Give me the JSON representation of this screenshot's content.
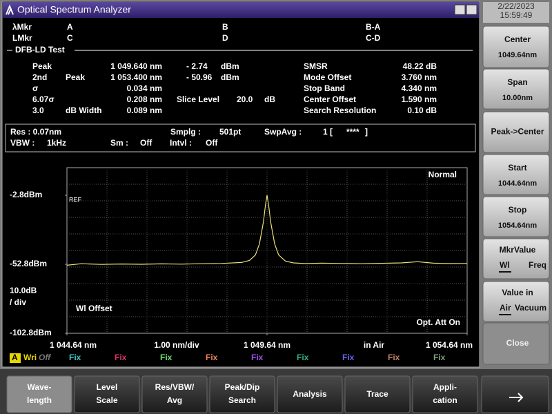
{
  "title_bar": {
    "title": "Optical Spectrum Analyzer"
  },
  "clock": {
    "date": "2/22/2023",
    "time": "15:59:49"
  },
  "markers": {
    "rows": [
      [
        "λMkr",
        "A",
        "B",
        "B-A"
      ],
      [
        "LMkr",
        "C",
        "D",
        "C-D"
      ]
    ]
  },
  "analysis": {
    "title": "DFB-LD Test",
    "left": [
      {
        "label": "Peak",
        "value": "1 049.640 nm",
        "level": "- 2.74",
        "unit": "dBm"
      },
      {
        "label": "2nd",
        "label2": "Peak",
        "value": "1 053.400 nm",
        "level": "- 50.96",
        "unit": "dBm"
      },
      {
        "label": "σ",
        "value": "0.034 nm"
      },
      {
        "label": "6.07σ",
        "value": "0.208 nm",
        "slice_label": "Slice Level",
        "slice_value": "20.0",
        "slice_unit": "dB"
      },
      {
        "label": "3.0",
        "label2": "dB Width",
        "value": "0.089 nm"
      }
    ],
    "right": [
      {
        "label": "SMSR",
        "value": "48.22 dB"
      },
      {
        "label": "Mode Offset",
        "value": "3.760 nm"
      },
      {
        "label": "Stop Band",
        "value": "4.340 nm"
      },
      {
        "label": "Center Offset",
        "value": "1.590 nm"
      },
      {
        "label": "Search Resolution",
        "value": "0.10  dB"
      }
    ]
  },
  "settings": {
    "res": "Res :  0.07nm",
    "smplg_label": "Smplg :",
    "smplg": "501pt",
    "swpavg_label": "SwpAvg :",
    "swpavg": "1 [",
    "swpavg_mark": "****",
    "swpavg_close": "]",
    "vbw_label": "VBW :",
    "vbw": "1kHz",
    "sm_label": "Sm :",
    "sm": "Off",
    "intvl_label": "Intvl :",
    "intvl": "Off"
  },
  "graph": {
    "mode": "Normal",
    "ref": "REF",
    "scale": "10.0dB",
    "scale_unit": "/ div",
    "wl_offset": "Wl Offset",
    "att": "Opt. Att On",
    "span_per_div": "1.00 nm/div",
    "medium": "in Air",
    "xlim": [
      1044.64,
      1054.64
    ],
    "ylim": [
      -102.8,
      17.2
    ],
    "xticks": [
      {
        "value": 1044.64,
        "label": "1 044.64 nm"
      },
      {
        "value": 1049.64,
        "label": "1 049.64 nm"
      },
      {
        "value": 1054.64,
        "label": "1 054.64 nm"
      }
    ],
    "yticks": [
      {
        "value": -2.8,
        "label": "-2.8dBm"
      },
      {
        "value": -52.8,
        "label": "-52.8dBm"
      },
      {
        "value": -102.8,
        "label": "-102.8dBm"
      }
    ],
    "trace": {
      "color": "#ece27a",
      "x": [
        1044.64,
        1045.0,
        1045.5,
        1046.0,
        1046.5,
        1047.0,
        1047.5,
        1048.0,
        1048.5,
        1049.0,
        1049.2,
        1049.35,
        1049.45,
        1049.55,
        1049.6,
        1049.64,
        1049.68,
        1049.73,
        1049.83,
        1049.93,
        1050.1,
        1050.3,
        1050.6,
        1051.0,
        1051.5,
        1052.0,
        1052.5,
        1053.0,
        1053.4,
        1053.8,
        1054.2,
        1054.64
      ],
      "y": [
        -53.5,
        -52.4,
        -52.9,
        -52.6,
        -52.8,
        -52.5,
        -52.7,
        -52.4,
        -52.2,
        -51.5,
        -50.0,
        -46,
        -38,
        -22,
        -10,
        -2.74,
        -10,
        -22,
        -38,
        -46,
        -50.5,
        -51.8,
        -52.3,
        -52.0,
        -52.2,
        -52.4,
        -52.1,
        -51.8,
        -50.96,
        -52.0,
        -52.3,
        -52.2
      ]
    }
  },
  "traces": {
    "active": {
      "letter": "A",
      "mode": "Wri",
      "state": "Off"
    },
    "others": [
      {
        "text": "Fix",
        "color": "#3fc4c4"
      },
      {
        "text": "Fix",
        "color": "#e0306a"
      },
      {
        "text": "Fix",
        "color": "#6fe06f"
      },
      {
        "text": "Fix",
        "color": "#f08060"
      },
      {
        "text": "Fix",
        "color": "#a050f0"
      },
      {
        "text": "Fix",
        "color": "#30b080"
      },
      {
        "text": "Fix",
        "color": "#6666f0"
      },
      {
        "text": "Fix",
        "color": "#c08060"
      },
      {
        "text": "Fix",
        "color": "#80a080"
      }
    ]
  },
  "side_keys": [
    {
      "label": "Center",
      "value": "1049.64nm"
    },
    {
      "label": "Span",
      "value": "10.00nm"
    },
    {
      "label": "Peak->Center"
    },
    {
      "label": "Start",
      "value": "1044.64nm"
    },
    {
      "label": "Stop",
      "value": "1054.64nm"
    },
    {
      "label": "MkrValue",
      "opt1": "Wl",
      "opt2": "Freq"
    },
    {
      "label": "Value in",
      "opt1": "Air",
      "opt2": "Vacuum"
    },
    {
      "label": "Close"
    }
  ],
  "bottom_keys": [
    [
      "Wave-",
      "length"
    ],
    [
      "Level",
      "Scale"
    ],
    [
      "Res/VBW/",
      "Avg"
    ],
    [
      "Peak/Dip",
      "Search"
    ],
    [
      "Analysis"
    ],
    [
      "Trace"
    ],
    [
      "Appli-",
      "cation"
    ]
  ]
}
